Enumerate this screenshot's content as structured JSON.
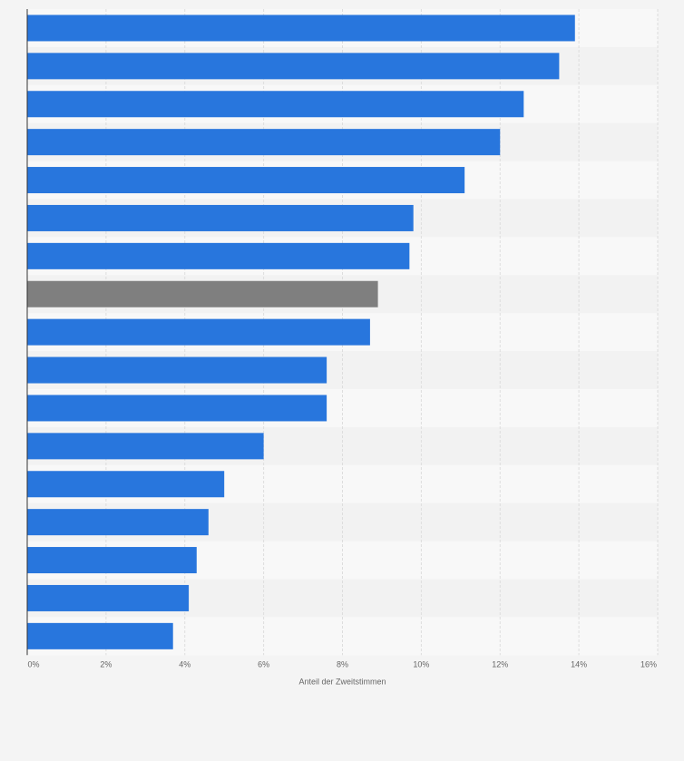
{
  "chart_data": {
    "type": "bar",
    "orientation": "horizontal",
    "title": "",
    "xlabel": "Anteil der Zweitstimmen",
    "ylabel": "",
    "xlim": [
      0,
      16
    ],
    "x_ticks": [
      0,
      2,
      4,
      6,
      8,
      10,
      12,
      14,
      16
    ],
    "x_tick_labels": [
      "0%",
      "2%",
      "4%",
      "6%",
      "8%",
      "10%",
      "12%",
      "14%",
      "16%"
    ],
    "grid": true,
    "categories": [
      "",
      "",
      "",
      "",
      "",
      "",
      "",
      "",
      "",
      "",
      "",
      "",
      "",
      "",
      "",
      "",
      ""
    ],
    "values": [
      13.9,
      13.5,
      12.6,
      12.0,
      11.1,
      9.8,
      9.7,
      8.9,
      8.7,
      7.6,
      7.6,
      6.0,
      5.0,
      4.6,
      4.3,
      4.1,
      3.7
    ],
    "highlight_index": 7,
    "colors": {
      "bar": "#2876dd",
      "highlight": "#7f7f7f",
      "background": "#f4f4f4",
      "band_light": "#f8f8f8",
      "band_dark": "#f2f2f2",
      "grid": "#dddddd",
      "axis": "#333333"
    }
  }
}
